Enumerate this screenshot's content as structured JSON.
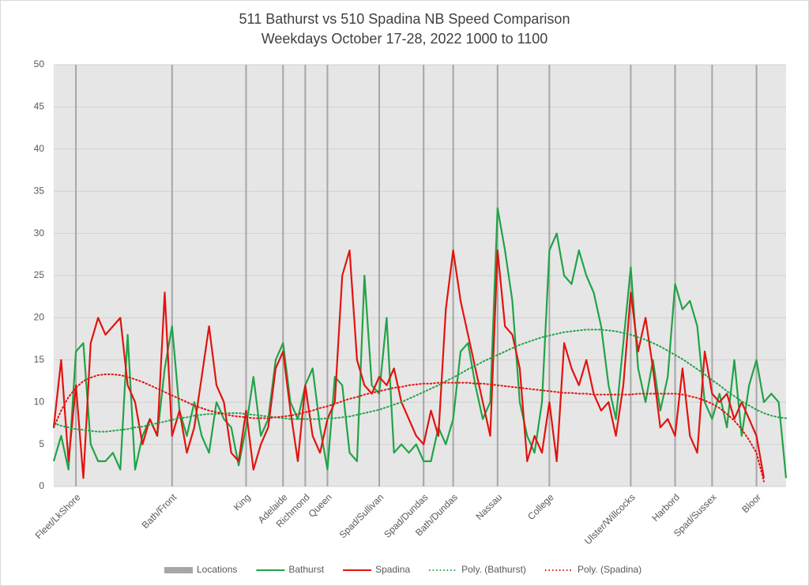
{
  "chart_data": {
    "type": "line",
    "title": "511 Bathurst vs 510 Spadina NB Speed Comparison",
    "subtitle": "Weekdays October 17-28, 2022 1000 to 1100",
    "categories": [
      null,
      null,
      null,
      "Fleet/LkShore",
      null,
      null,
      null,
      null,
      null,
      null,
      null,
      null,
      null,
      null,
      null,
      null,
      "Bath/Front",
      null,
      null,
      null,
      null,
      null,
      null,
      null,
      null,
      null,
      "King",
      null,
      null,
      null,
      null,
      "Adelaide",
      null,
      null,
      "Richmond",
      null,
      null,
      "Queen",
      null,
      null,
      null,
      null,
      null,
      null,
      "Spad/Sullivan",
      null,
      null,
      null,
      null,
      null,
      "Spad/Dundas",
      null,
      null,
      null,
      "Bath/Dundas",
      null,
      null,
      null,
      null,
      null,
      "Nassau",
      null,
      null,
      null,
      null,
      null,
      null,
      "College",
      null,
      null,
      null,
      null,
      null,
      null,
      null,
      null,
      null,
      null,
      "Ulster/Willcocks",
      null,
      null,
      null,
      null,
      null,
      "Harbord",
      null,
      null,
      null,
      null,
      "Spad/Sussex",
      null,
      null,
      null,
      null,
      null,
      "Bloor",
      null,
      null,
      null,
      null
    ],
    "series": [
      {
        "name": "Locations",
        "color": "#a6a6a6",
        "style": "column",
        "values": [
          null,
          null,
          null,
          50,
          null,
          null,
          null,
          null,
          null,
          null,
          null,
          null,
          null,
          null,
          null,
          null,
          50,
          null,
          null,
          null,
          null,
          null,
          null,
          null,
          null,
          null,
          50,
          null,
          null,
          null,
          null,
          50,
          null,
          null,
          50,
          null,
          null,
          50,
          null,
          null,
          null,
          null,
          null,
          null,
          50,
          null,
          null,
          null,
          null,
          null,
          50,
          null,
          null,
          null,
          50,
          null,
          null,
          null,
          null,
          null,
          50,
          null,
          null,
          null,
          null,
          null,
          null,
          50,
          null,
          null,
          null,
          null,
          null,
          null,
          null,
          null,
          null,
          null,
          50,
          null,
          null,
          null,
          null,
          null,
          50,
          null,
          null,
          null,
          null,
          50,
          null,
          null,
          null,
          null,
          null,
          50,
          null,
          null,
          null,
          null
        ]
      },
      {
        "name": "Bathurst",
        "color": "#21a348",
        "style": "solid",
        "values": [
          3,
          6,
          2,
          16,
          17,
          5,
          3,
          3,
          4,
          2,
          18,
          2,
          6,
          8,
          6,
          14,
          19,
          9,
          6,
          10,
          6,
          4,
          10,
          8,
          7,
          2.5,
          7,
          13,
          6,
          8,
          15,
          17,
          10,
          8,
          12,
          14,
          7,
          2,
          13,
          12,
          4,
          3,
          25,
          12,
          11,
          20,
          4,
          5,
          4,
          5,
          3,
          3,
          7,
          5,
          8,
          16,
          17,
          12,
          8,
          10,
          33,
          28,
          22,
          10,
          6,
          4,
          10,
          28,
          30,
          25,
          24,
          28,
          25,
          23,
          19,
          12,
          8,
          17,
          26,
          14,
          10,
          15,
          9,
          13,
          24,
          21,
          22,
          19,
          10,
          8,
          11,
          7,
          15,
          6,
          12,
          15,
          10,
          11,
          10,
          1
        ]
      },
      {
        "name": "Spadina",
        "color": "#e0140f",
        "style": "solid",
        "values": [
          7,
          15,
          3,
          12,
          1,
          17,
          20,
          18,
          19,
          20,
          12,
          10,
          5,
          8,
          6,
          23,
          6,
          9,
          4,
          7,
          13,
          19,
          12,
          10,
          4,
          3,
          9,
          2,
          5,
          7,
          14,
          16,
          9,
          3,
          12,
          6,
          4,
          8,
          10,
          25,
          28,
          15,
          12,
          11,
          13,
          12,
          14,
          10,
          8,
          6,
          5,
          9,
          6,
          21,
          28,
          22,
          18,
          14,
          10,
          6,
          28,
          19,
          18,
          14,
          3,
          6,
          4,
          10,
          3,
          17,
          14,
          12,
          15,
          11,
          9,
          10,
          6,
          12,
          23,
          16,
          20,
          14,
          7,
          8,
          6,
          14,
          6,
          4,
          16,
          11,
          10,
          11,
          8,
          10,
          8,
          6,
          1,
          null,
          null,
          null
        ]
      },
      {
        "name": "Poly. (Bathurst)",
        "color": "#21a348",
        "style": "dotted",
        "values": [
          7.5,
          7.2,
          7.0,
          6.8,
          6.7,
          6.6,
          6.5,
          6.5,
          6.6,
          6.7,
          6.8,
          7.0,
          7.1,
          7.3,
          7.5,
          7.7,
          7.9,
          8.1,
          8.2,
          8.4,
          8.5,
          8.6,
          8.6,
          8.7,
          8.7,
          8.7,
          8.6,
          8.5,
          8.4,
          8.3,
          8.2,
          8.1,
          8.0,
          8.0,
          8.0,
          8.0,
          8.0,
          8.1,
          8.1,
          8.2,
          8.3,
          8.5,
          8.7,
          8.9,
          9.1,
          9.4,
          9.7,
          10.0,
          10.4,
          10.8,
          11.2,
          11.6,
          12.0,
          12.5,
          12.9,
          13.4,
          13.9,
          14.3,
          14.8,
          15.2,
          15.6,
          16.0,
          16.4,
          16.8,
          17.1,
          17.4,
          17.7,
          17.9,
          18.1,
          18.3,
          18.4,
          18.5,
          18.6,
          18.6,
          18.6,
          18.5,
          18.4,
          18.2,
          18.0,
          17.7,
          17.4,
          17.0,
          16.6,
          16.1,
          15.6,
          15.1,
          14.5,
          13.9,
          13.3,
          12.6,
          12.0,
          11.3,
          10.7,
          10.1,
          9.6,
          9.1,
          8.7,
          8.4,
          8.2,
          8.1
        ]
      },
      {
        "name": "Poly. (Spadina)",
        "color": "#e0140f",
        "style": "dotted",
        "values": [
          7.0,
          9.0,
          10.6,
          11.7,
          12.5,
          12.9,
          13.2,
          13.3,
          13.3,
          13.2,
          13.0,
          12.7,
          12.4,
          12.0,
          11.6,
          11.2,
          10.8,
          10.4,
          10.0,
          9.6,
          9.3,
          9.0,
          8.8,
          8.6,
          8.4,
          8.3,
          8.2,
          8.1,
          8.1,
          8.1,
          8.2,
          8.3,
          8.4,
          8.6,
          8.8,
          9.0,
          9.3,
          9.5,
          9.8,
          10.1,
          10.4,
          10.6,
          10.9,
          11.1,
          11.3,
          11.5,
          11.7,
          11.8,
          12.0,
          12.1,
          12.2,
          12.2,
          12.3,
          12.3,
          12.3,
          12.3,
          12.3,
          12.2,
          12.2,
          12.1,
          12.0,
          11.9,
          11.8,
          11.7,
          11.6,
          11.5,
          11.4,
          11.3,
          11.2,
          11.1,
          11.1,
          11.0,
          11.0,
          10.9,
          10.9,
          10.9,
          10.9,
          10.9,
          10.9,
          11.0,
          11.0,
          11.0,
          11.0,
          11.0,
          11.0,
          10.9,
          10.7,
          10.5,
          10.2,
          9.8,
          9.3,
          8.6,
          7.8,
          6.8,
          5.5,
          4.0,
          0.6,
          null,
          null,
          null
        ]
      }
    ],
    "ylim": [
      0,
      50
    ],
    "yticks": [
      0,
      5,
      10,
      15,
      20,
      25,
      30,
      35,
      40,
      45,
      50
    ],
    "grid": true,
    "legend": "bottom"
  }
}
